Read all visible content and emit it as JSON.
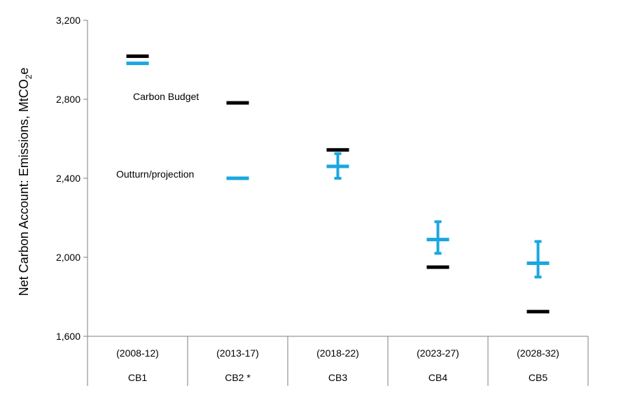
{
  "chart_data": {
    "type": "scatter",
    "title": "",
    "ylabel_main": "Net Carbon Account: Emissions, MtCO",
    "ylabel_sub": "2",
    "ylabel_tail": "e",
    "ylim": [
      1600,
      3200
    ],
    "yticks": [
      1600,
      2000,
      2400,
      2800,
      3200
    ],
    "ytick_labels": [
      "1,600",
      "2,000",
      "2,400",
      "2,800",
      "3,200"
    ],
    "grid": false,
    "categories": [
      {
        "period": "(2008-12)",
        "name": "CB1"
      },
      {
        "period": "(2013-17)",
        "name": "CB2 *"
      },
      {
        "period": "(2018-22)",
        "name": "CB3"
      },
      {
        "period": "(2023-27)",
        "name": "CB4"
      },
      {
        "period": "(2028-32)",
        "name": "CB5"
      }
    ],
    "series": [
      {
        "name": "Carbon Budget",
        "color": "#000000",
        "values": [
          3018,
          2782,
          2544,
          1950,
          1725
        ]
      },
      {
        "name": "Outturn/projection",
        "color": "#1aa7e0",
        "values": [
          2982,
          2400,
          2460,
          2090,
          1970
        ],
        "error_low": [
          null,
          null,
          2400,
          2020,
          1900
        ],
        "error_high": [
          null,
          null,
          2525,
          2180,
          2080
        ]
      }
    ],
    "annotations": [
      {
        "text": "Carbon Budget",
        "series": 0
      },
      {
        "text": "Outturn/projection",
        "series": 1
      }
    ]
  }
}
